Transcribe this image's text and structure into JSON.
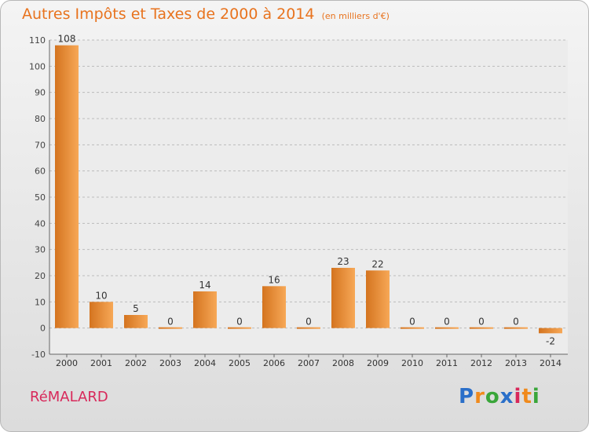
{
  "title": "Autres Impôts et Taxes de 2000 à 2014",
  "subtitle": "(en milliers d'€)",
  "commune": "RéMALARD",
  "logo": {
    "letters": [
      {
        "ch": "P",
        "color": "#2a6fc9"
      },
      {
        "ch": "r",
        "color": "#f08a1c"
      },
      {
        "ch": "o",
        "color": "#3aa63a"
      },
      {
        "ch": "x",
        "color": "#2a6fc9"
      },
      {
        "ch": "i",
        "color": "#d8285a"
      },
      {
        "ch": "t",
        "color": "#f08a1c"
      },
      {
        "ch": "i",
        "color": "#3aa63a"
      }
    ]
  },
  "colors": {
    "bar_light": "#f7a857",
    "bar_dark": "#d4741f",
    "title": "#e8731e",
    "commune": "#d8285a",
    "grid": "#bbbbbb"
  },
  "chart_data": {
    "type": "bar",
    "categories": [
      "2000",
      "2001",
      "2002",
      "2003",
      "2004",
      "2005",
      "2006",
      "2007",
      "2008",
      "2009",
      "2010",
      "2011",
      "2012",
      "2013",
      "2014"
    ],
    "values": [
      108,
      10,
      5,
      0,
      14,
      0,
      16,
      0,
      23,
      22,
      0,
      0,
      0,
      0,
      -2
    ],
    "value_labels": [
      "108",
      "10",
      "5",
      "0",
      "14",
      "0",
      "16",
      "0",
      "23",
      "22",
      "0",
      "0",
      "0",
      "0",
      "-2"
    ],
    "ylim": [
      -10,
      110
    ],
    "yticks": [
      -10,
      0,
      10,
      20,
      30,
      40,
      50,
      60,
      70,
      80,
      90,
      100,
      110
    ],
    "grid": true,
    "xlabel": "",
    "ylabel": ""
  }
}
